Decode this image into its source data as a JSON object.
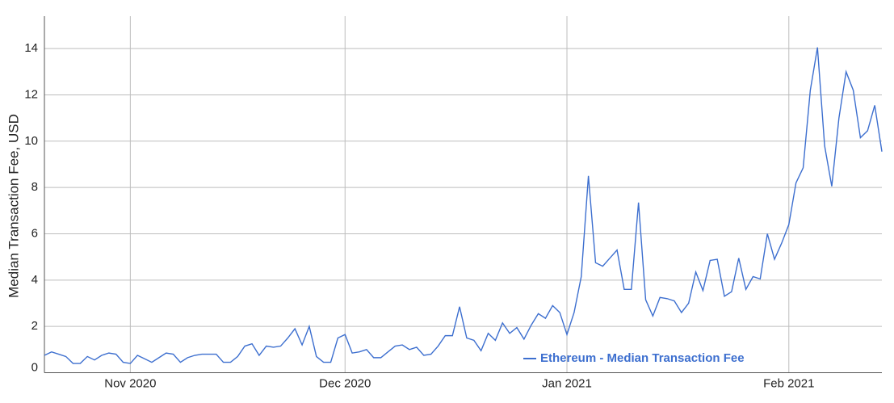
{
  "chart_data": {
    "type": "line",
    "y_label": "Median Transaction Fee, USD",
    "x": [
      0,
      1,
      2,
      3,
      4,
      5,
      6,
      7,
      8,
      9,
      10,
      11,
      12,
      13,
      14,
      15,
      16,
      17,
      18,
      19,
      20,
      21,
      22,
      23,
      24,
      25,
      26,
      27,
      28,
      29,
      30,
      31,
      32,
      33,
      34,
      35,
      36,
      37,
      38,
      39,
      40,
      41,
      42,
      43,
      44,
      45,
      46,
      47,
      48,
      49,
      50,
      51,
      52,
      53,
      54,
      55,
      56,
      57,
      58,
      59,
      60,
      61,
      62,
      63,
      64,
      65,
      66,
      67,
      68,
      69,
      70,
      71,
      72,
      73,
      74,
      75,
      76,
      77,
      78,
      79,
      80,
      81,
      82,
      83,
      84,
      85,
      86,
      87,
      88,
      89,
      90,
      91,
      92,
      93,
      94,
      95,
      96,
      97,
      98,
      99,
      100,
      101,
      102,
      103,
      104,
      105,
      106,
      107,
      108,
      109,
      110,
      111,
      112,
      113,
      114,
      115,
      116,
      117
    ],
    "series": [
      {
        "name": "Ethereum - Median Transaction Fee",
        "color": "#3d6fcf",
        "values": [
          0.75,
          0.9,
          0.8,
          0.7,
          0.4,
          0.4,
          0.7,
          0.55,
          0.75,
          0.85,
          0.8,
          0.45,
          0.4,
          0.75,
          0.6,
          0.45,
          0.65,
          0.85,
          0.8,
          0.45,
          0.65,
          0.75,
          0.8,
          0.8,
          0.8,
          0.45,
          0.45,
          0.7,
          1.15,
          1.25,
          0.75,
          1.15,
          1.1,
          1.15,
          1.5,
          1.9,
          1.2,
          2.0,
          0.7,
          0.45,
          0.45,
          1.5,
          1.65,
          0.85,
          0.9,
          1.0,
          0.65,
          0.65,
          0.9,
          1.15,
          1.2,
          1.0,
          1.1,
          0.75,
          0.8,
          1.15,
          1.6,
          1.6,
          2.85,
          1.5,
          1.4,
          0.95,
          1.7,
          1.4,
          2.15,
          1.7,
          1.95,
          1.45,
          2.05,
          2.55,
          2.35,
          2.9,
          2.6,
          1.65,
          2.6,
          4.15,
          8.5,
          4.75,
          4.6,
          4.95,
          5.3,
          3.6,
          3.6,
          7.35,
          3.15,
          2.45,
          3.25,
          3.2,
          3.1,
          2.6,
          3.0,
          4.35,
          3.55,
          4.85,
          4.9,
          3.3,
          3.5,
          4.95,
          3.6,
          4.15,
          4.05,
          6.0,
          4.9,
          5.6,
          6.4,
          8.2,
          8.85,
          12.2,
          14.05,
          9.8,
          8.05,
          11.0,
          13.0,
          12.2,
          10.15,
          10.45,
          11.55,
          9.55
        ]
      }
    ],
    "xlim": [
      0,
      117
    ],
    "xticks": [
      {
        "value": 12,
        "label": "Nov 2020"
      },
      {
        "value": 42,
        "label": "Dec 2020"
      },
      {
        "value": 73,
        "label": "Jan 2021"
      },
      {
        "value": 104,
        "label": "Feb 2021"
      }
    ],
    "ylim": [
      0,
      15.4
    ],
    "yticks": [
      0,
      2,
      4,
      6,
      8,
      10,
      12,
      14
    ],
    "grid": true
  }
}
